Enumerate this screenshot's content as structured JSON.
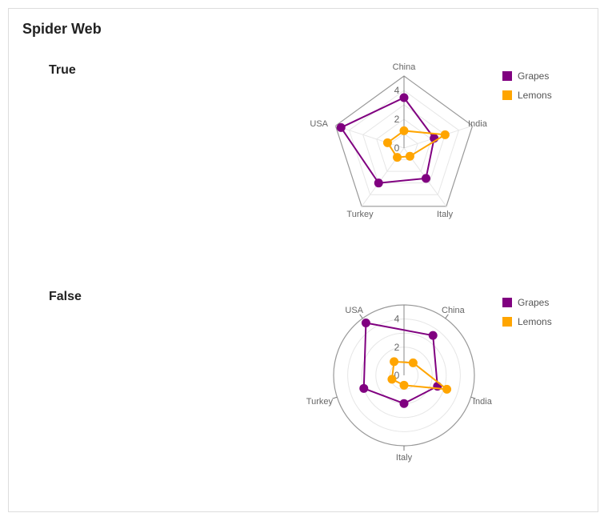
{
  "card": {
    "title": "Spider Web"
  },
  "colors": {
    "Grapes": "#800080",
    "Lemons": "#FFA500"
  },
  "chart_data": [
    {
      "type": "radar",
      "title": "True",
      "web": "polygon",
      "categories": [
        "China",
        "India",
        "Italy",
        "Turkey",
        "USA"
      ],
      "radial_ticks": [
        "0",
        "2",
        "4"
      ],
      "rmax": 5,
      "legend": "top-right",
      "series": [
        {
          "name": "Grapes",
          "values": [
            3.5,
            2.2,
            2.6,
            3.0,
            4.6
          ]
        },
        {
          "name": "Lemons",
          "values": [
            1.2,
            3.0,
            0.7,
            0.8,
            1.2
          ]
        }
      ]
    },
    {
      "type": "radar",
      "title": "False",
      "web": "circle",
      "categories": [
        "China",
        "India",
        "Italy",
        "Turkey",
        "USA"
      ],
      "radial_ticks": [
        "0",
        "2",
        "4"
      ],
      "rmax": 5,
      "legend": "top-right",
      "series": [
        {
          "name": "Grapes",
          "values": [
            3.5,
            2.5,
            2.0,
            3.0,
            4.6
          ]
        },
        {
          "name": "Lemons",
          "values": [
            1.1,
            3.2,
            0.7,
            0.9,
            1.2
          ]
        }
      ]
    }
  ]
}
